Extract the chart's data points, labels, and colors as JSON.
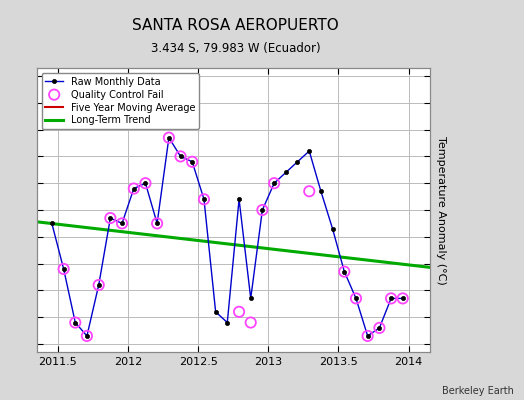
{
  "title": "SANTA ROSA AEROPUERTO",
  "subtitle": "3.434 S, 79.983 W (Ecuador)",
  "ylabel": "Temperature Anomaly (°C)",
  "credit": "Berkeley Earth",
  "xlim": [
    2011.35,
    2014.15
  ],
  "ylim": [
    -1.65,
    3.65
  ],
  "yticks": [
    -1.5,
    -1.0,
    -0.5,
    0.0,
    0.5,
    1.0,
    1.5,
    2.0,
    2.5,
    3.0,
    3.5
  ],
  "xticks": [
    2011.5,
    2012.0,
    2012.5,
    2013.0,
    2013.5,
    2014.0
  ],
  "raw_x": [
    2011.458,
    2011.542,
    2011.625,
    2011.708,
    2011.792,
    2011.875,
    2011.958,
    2012.042,
    2012.125,
    2012.208,
    2012.292,
    2012.375,
    2012.458,
    2012.542,
    2012.625,
    2012.708,
    2012.792,
    2012.875,
    2012.958,
    2013.042,
    2013.125,
    2013.208,
    2013.292,
    2013.375,
    2013.458,
    2013.542,
    2013.625,
    2013.708,
    2013.792,
    2013.875,
    2013.958
  ],
  "raw_y": [
    0.75,
    -0.1,
    -1.1,
    -1.35,
    -0.4,
    0.85,
    0.75,
    1.4,
    1.5,
    0.75,
    2.35,
    2.0,
    1.9,
    1.2,
    -0.9,
    -1.1,
    1.2,
    -0.65,
    1.0,
    1.5,
    1.7,
    1.9,
    2.1,
    1.35,
    0.65,
    -0.15,
    -0.65,
    -1.35,
    -1.2,
    -0.65,
    -0.65
  ],
  "qc_fail_x": [
    2011.542,
    2011.625,
    2011.708,
    2011.792,
    2011.875,
    2011.958,
    2012.042,
    2012.125,
    2012.208,
    2012.292,
    2012.375,
    2012.458,
    2012.542,
    2012.792,
    2012.875,
    2012.958,
    2013.042,
    2013.292,
    2013.542,
    2013.625,
    2013.708,
    2013.792,
    2013.875,
    2013.958
  ],
  "qc_fail_y": [
    -0.1,
    -1.1,
    -1.35,
    -0.4,
    0.85,
    0.75,
    1.4,
    1.5,
    0.75,
    2.35,
    2.0,
    1.9,
    1.2,
    -0.9,
    -1.1,
    1.0,
    1.5,
    1.35,
    -0.15,
    -0.65,
    -1.35,
    -1.2,
    -0.65,
    -0.65
  ],
  "trend_x": [
    2011.35,
    2014.15
  ],
  "trend_y": [
    0.78,
    -0.07
  ],
  "raw_line_color": "#0000cc",
  "raw_marker_color": "#000000",
  "qc_color": "#ff44ff",
  "trend_color": "#00aa00",
  "ma_color": "#cc0000",
  "background_color": "#d8d8d8",
  "plot_background": "#ffffff",
  "grid_color": "#bbbbbb"
}
